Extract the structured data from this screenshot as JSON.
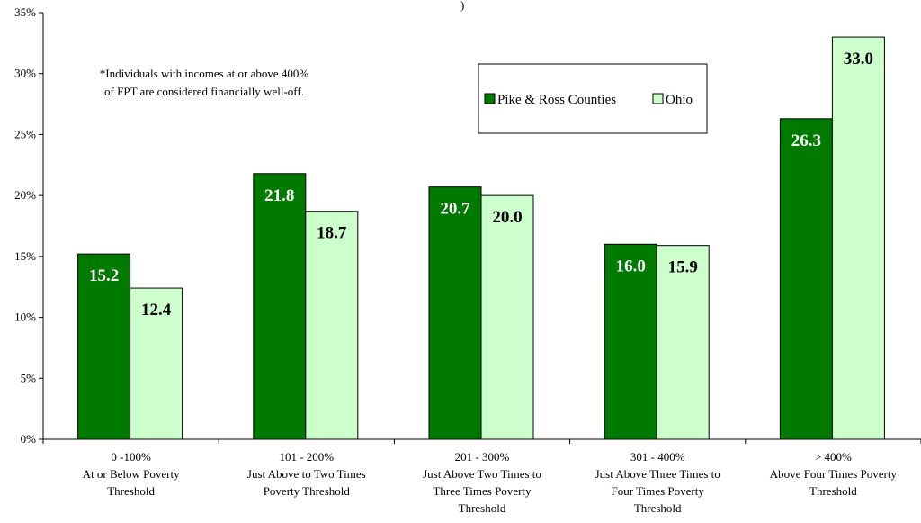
{
  "chart_data": {
    "type": "bar",
    "title_fragment": ")",
    "categories": [
      [
        "0 -100%",
        "At or Below Poverty",
        "Threshold"
      ],
      [
        "101 - 200%",
        "Just Above to Two Times",
        "Poverty Threshold"
      ],
      [
        "201 - 300%",
        "Just Above Two Times to",
        "Three Times Poverty",
        "Threshold"
      ],
      [
        "301 - 400%",
        "Just Above Three Times to",
        "Four Times Poverty",
        "Threshold"
      ],
      [
        "> 400%",
        "Above Four Times Poverty",
        "Threshold"
      ]
    ],
    "series": [
      {
        "name": "Pike & Ross Counties",
        "values": [
          15.2,
          21.8,
          20.7,
          16.0,
          26.3
        ],
        "labels": [
          "15.2",
          "21.8",
          "20.7",
          "16.0",
          "26.3"
        ],
        "color": "#007a00",
        "label_color": "#ffffff"
      },
      {
        "name": "Ohio",
        "values": [
          12.4,
          18.7,
          20.0,
          15.9,
          33.0
        ],
        "labels": [
          "12.4",
          "18.7",
          "20.0",
          "15.9",
          "33.0"
        ],
        "color": "#ccffcc",
        "label_color": "#000000"
      }
    ],
    "yticks": [
      "0%",
      "5%",
      "10%",
      "15%",
      "20%",
      "25%",
      "30%",
      "35%"
    ],
    "ylim": [
      0,
      35
    ],
    "legend_position": "top-center",
    "annotation": [
      "*Individuals with incomes at or above 400%",
      "of FPT are considered financially well-off."
    ]
  }
}
